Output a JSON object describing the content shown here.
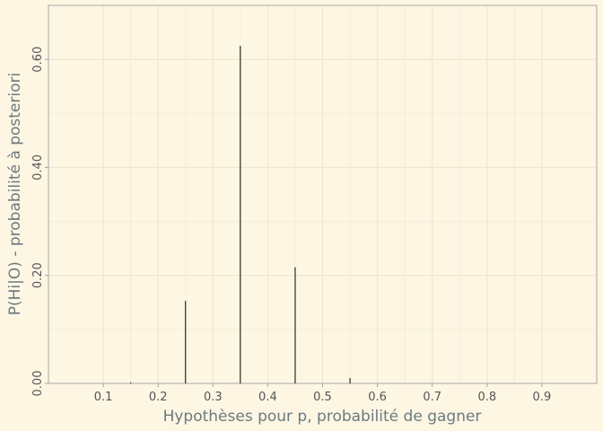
{
  "chart_data": {
    "type": "bar",
    "title": "",
    "xlabel": "Hypothèses pour p, probabilité de gagner",
    "ylabel": "P(Hi|O) - probabilité à posteriori",
    "x": [
      0.05,
      0.15,
      0.25,
      0.35,
      0.45,
      0.55,
      0.65,
      0.75,
      0.85,
      0.95
    ],
    "values": [
      0.0,
      0.002,
      0.153,
      0.625,
      0.215,
      0.01,
      0.0,
      0.0,
      0.0,
      0.0
    ],
    "xlim": [
      0.0,
      1.0
    ],
    "ylim": [
      0.0,
      0.7
    ],
    "xticks": [
      0.1,
      0.2,
      0.3,
      0.4,
      0.5,
      0.6,
      0.7,
      0.8,
      0.9
    ],
    "xtick_labels": [
      "0.1",
      "0.2",
      "0.3",
      "0.4",
      "0.5",
      "0.6",
      "0.7",
      "0.8",
      "0.9"
    ],
    "yticks": [
      0.0,
      0.2,
      0.4,
      0.6
    ],
    "ytick_labels": [
      "0.00",
      "0.20",
      "0.40",
      "0.60"
    ],
    "grid": true,
    "legend": "none",
    "colors": {
      "background": "#fdf6e3",
      "panel_border": "#a5a5a5",
      "grid_major": "#ece4cc",
      "grid_minor": "#f3ecd6",
      "bar": "#000000",
      "axis_title": "#6c7a80",
      "tick_label": "#555555"
    }
  }
}
